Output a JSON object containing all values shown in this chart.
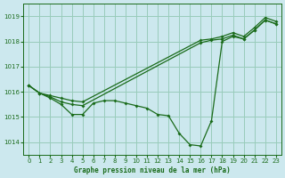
{
  "title": "Graphe pression niveau de la mer (hPa)",
  "bg_color": "#cce8ee",
  "line_color": "#1a6b1a",
  "grid_color": "#99ccbb",
  "xlim": [
    -0.5,
    23.5
  ],
  "ylim": [
    1013.5,
    1019.5
  ],
  "xticks": [
    0,
    1,
    2,
    3,
    4,
    5,
    6,
    7,
    8,
    9,
    10,
    11,
    12,
    13,
    14,
    15,
    16,
    17,
    18,
    19,
    20,
    21,
    22,
    23
  ],
  "yticks": [
    1014,
    1015,
    1016,
    1017,
    1018,
    1019
  ],
  "line_detail": {
    "x": [
      0,
      1,
      2,
      3,
      4,
      5,
      6,
      7,
      8,
      9,
      10,
      11,
      12,
      13,
      14,
      15,
      16,
      17,
      18,
      19,
      20,
      21,
      22,
      23
    ],
    "y": [
      1016.25,
      1015.95,
      1015.75,
      1015.5,
      1015.1,
      1015.1,
      1015.55,
      1015.65,
      1015.65,
      1015.55,
      1015.45,
      1015.35,
      1015.1,
      1015.05,
      1014.35,
      1013.9,
      1013.85,
      1014.85,
      1018.0,
      1018.2,
      1018.1,
      1018.45,
      1018.85,
      1018.7
    ]
  },
  "line_upper": {
    "x": [
      0,
      1,
      2,
      3,
      4,
      5,
      16,
      17,
      18,
      19,
      20,
      21,
      22,
      23
    ],
    "y": [
      1016.25,
      1015.95,
      1015.85,
      1015.75,
      1015.65,
      1015.6,
      1018.05,
      1018.1,
      1018.2,
      1018.35,
      1018.2,
      1018.55,
      1018.95,
      1018.8
    ]
  },
  "line_lower": {
    "x": [
      0,
      1,
      2,
      3,
      4,
      5,
      16,
      17,
      18,
      19,
      20,
      21,
      22,
      23
    ],
    "y": [
      1016.25,
      1015.95,
      1015.8,
      1015.6,
      1015.5,
      1015.45,
      1017.95,
      1018.05,
      1018.1,
      1018.25,
      1018.1,
      1018.45,
      1018.85,
      1018.7
    ]
  }
}
